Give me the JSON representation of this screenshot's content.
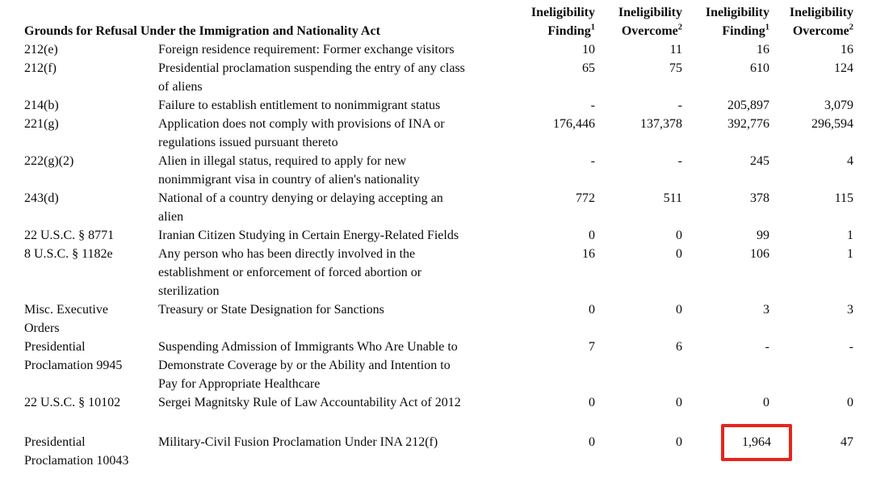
{
  "table": {
    "title": "Grounds for Refusal Under the Immigration and Nationality Act",
    "columns": [
      {
        "line1": "Ineligibility",
        "line2": "Finding",
        "sup": "1"
      },
      {
        "line1": "Ineligibility",
        "line2": "Overcome",
        "sup": "2"
      },
      {
        "line1": "Ineligibility",
        "line2": "Finding",
        "sup": "1"
      },
      {
        "line1": "Ineligibility",
        "line2": "Overcome",
        "sup": "2"
      }
    ],
    "highlight_color": "#e8241c",
    "rows": [
      {
        "code": "212(e)",
        "description": "Foreign residence requirement: Former exchange visitors",
        "values": [
          "10",
          "11",
          "16",
          "16"
        ]
      },
      {
        "code": "212(f)",
        "description": "Presidential proclamation suspending the entry of any class\nof aliens",
        "values": [
          "65",
          "75",
          "610",
          "124"
        ]
      },
      {
        "code": "214(b)",
        "description": "Failure to establish entitlement to nonimmigrant status",
        "values": [
          "-",
          "-",
          "205,897",
          "3,079"
        ]
      },
      {
        "code": "221(g)",
        "description": "Application does not comply with provisions of INA or\nregulations issued pursuant thereto",
        "values": [
          "176,446",
          "137,378",
          "392,776",
          "296,594"
        ]
      },
      {
        "code": "222(g)(2)",
        "description": "Alien in illegal status, required to apply for new\nnonimmigrant visa in country of alien's nationality",
        "values": [
          "-",
          "-",
          "245",
          "4"
        ]
      },
      {
        "code": "243(d)",
        "description": "National of a country denying or delaying accepting an\nalien",
        "values": [
          "772",
          "511",
          "378",
          "115"
        ]
      },
      {
        "code": "22 U.S.C. § 8771",
        "description": "Iranian Citizen Studying in Certain Energy-Related Fields",
        "values": [
          "0",
          "0",
          "99",
          "1"
        ]
      },
      {
        "code": "8 U.S.C. § 1182e",
        "description": "Any person who has been directly involved in the\nestablishment or enforcement of forced abortion or\nsterilization",
        "values": [
          "16",
          "0",
          "106",
          "1"
        ]
      },
      {
        "code": "Misc. Executive\nOrders",
        "description": "Treasury or State Designation for Sanctions",
        "values": [
          "0",
          "0",
          "3",
          "3"
        ]
      },
      {
        "code": "Presidential\nProclamation 9945",
        "description": "Suspending Admission of Immigrants Who Are Unable to\nDemonstrate Coverage by or the Ability and Intention to\nPay for Appropriate Healthcare",
        "values": [
          "7",
          "6",
          "-",
          "-"
        ]
      },
      {
        "code": "22 U.S.C. § 10102",
        "description": "Sergei Magnitsky Rule of Law Accountability Act of 2012",
        "values": [
          "0",
          "0",
          "0",
          "0"
        ]
      },
      {
        "code": "Presidential\nProclamation 10043",
        "description": "Military-Civil Fusion Proclamation Under INA 212(f)",
        "values": [
          "0",
          "0",
          "1,964",
          "47"
        ],
        "highlight": {
          "column": 2
        }
      }
    ]
  }
}
